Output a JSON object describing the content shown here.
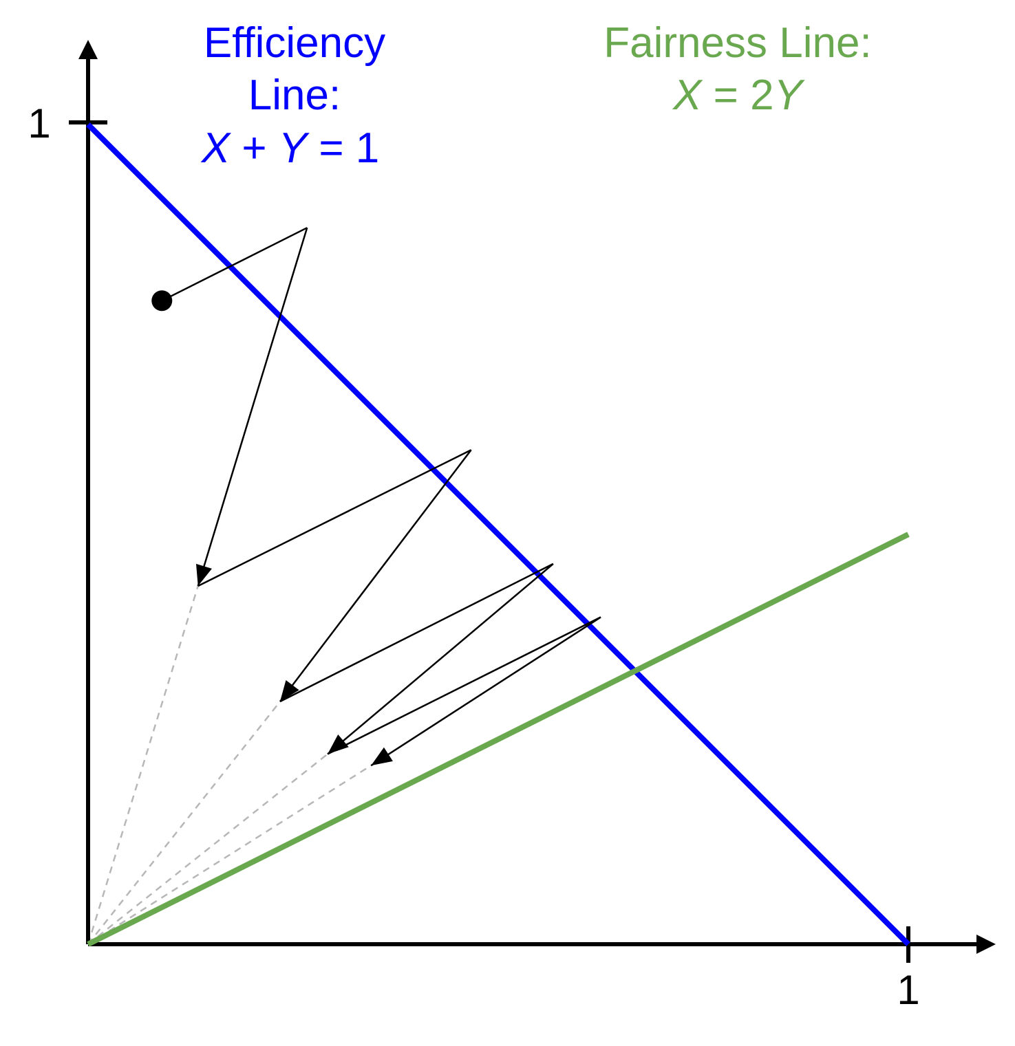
{
  "colors": {
    "efficiency": "#0000ff",
    "fairness": "#6aa84f",
    "axis": "#000000",
    "guide": "#b7b7b7"
  },
  "axes": {
    "x_tick_label": "1",
    "y_tick_label": "1",
    "range": [
      0,
      1
    ]
  },
  "efficiency": {
    "title": "Efficiency",
    "subtitle": "Line:",
    "eq_x": "X",
    "eq_plus": " + ",
    "eq_y": "Y",
    "eq_rhs": " = 1",
    "points": [
      [
        0,
        1
      ],
      [
        1,
        0
      ]
    ]
  },
  "fairness": {
    "title": "Fairness Line:",
    "eq_x": "X",
    "eq_mid": " = 2",
    "eq_y": "Y",
    "points": [
      [
        0,
        0
      ],
      [
        1,
        0.5
      ]
    ]
  },
  "trajectory": {
    "start": [
      0.09,
      0.785
    ],
    "points": [
      [
        0.09,
        0.785
      ],
      [
        0.267,
        0.874
      ],
      [
        0.134,
        0.437
      ],
      [
        0.467,
        0.603
      ],
      [
        0.234,
        0.296
      ],
      [
        0.567,
        0.464
      ],
      [
        0.292,
        0.232
      ],
      [
        0.625,
        0.399
      ],
      [
        0.345,
        0.218
      ]
    ]
  }
}
